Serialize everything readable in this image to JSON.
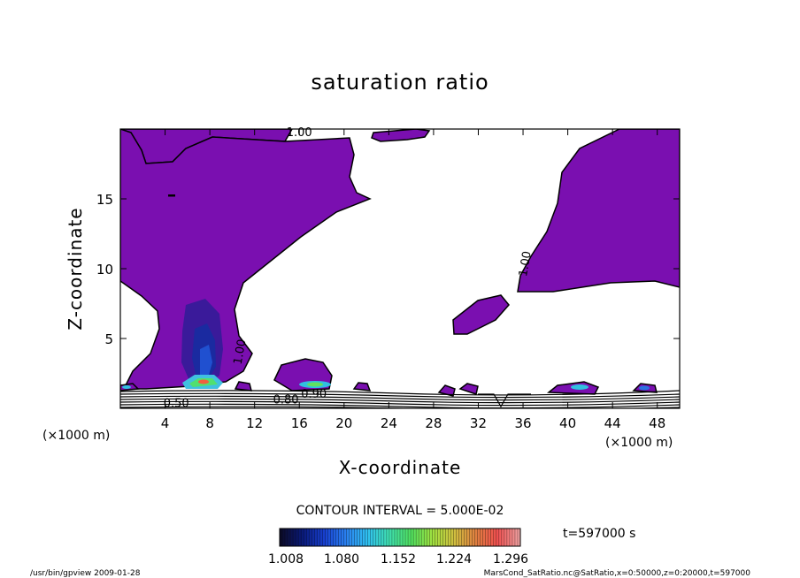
{
  "chart_data": {
    "type": "contour",
    "title": "saturation ratio",
    "xlabel": "X-coordinate",
    "ylabel": "Z-coordinate",
    "x_unit": "(×1000 m)",
    "z_unit": "(×1000 m)",
    "xlim": [
      0,
      50
    ],
    "ylim": [
      0,
      20
    ],
    "x_ticks": [
      4,
      8,
      12,
      16,
      20,
      24,
      28,
      32,
      36,
      40,
      44,
      48
    ],
    "y_ticks": [
      5,
      10,
      15
    ],
    "contour_interval_text": "CONTOUR INTERVAL = 5.000E-02",
    "time_text": "t=597000 s",
    "contour_labels": [
      {
        "text": "1.00",
        "x": 16,
        "z": 19.5
      },
      {
        "text": "1.00",
        "x": 36.5,
        "z": 10.3
      },
      {
        "text": "1.00",
        "x": 11,
        "z": 4.0
      },
      {
        "text": "0.50",
        "x": 5.0,
        "z": 0.1
      },
      {
        "text": "0.80",
        "x": 14.8,
        "z": 0.35
      },
      {
        "text": "0.90",
        "x": 17.3,
        "z": 0.75
      }
    ],
    "colorbar": {
      "ticks": [
        "1.008",
        "1.080",
        "1.152",
        "1.224",
        "1.296"
      ],
      "colors": [
        "#0b0b2a",
        "#0a1a7a",
        "#1840d0",
        "#2a80f0",
        "#30c0f0",
        "#40e0b0",
        "#50e060",
        "#a0e040",
        "#d0c040",
        "#e08040",
        "#f05050",
        "#f0a0a0"
      ]
    },
    "fill_color": "#7a0fb0"
  },
  "footer": {
    "left": "/usr/bin/gpview   2009-01-28",
    "right": "MarsCond_SatRatio.nc@SatRatio,x=0:50000,z=0:20000,t=597000"
  }
}
